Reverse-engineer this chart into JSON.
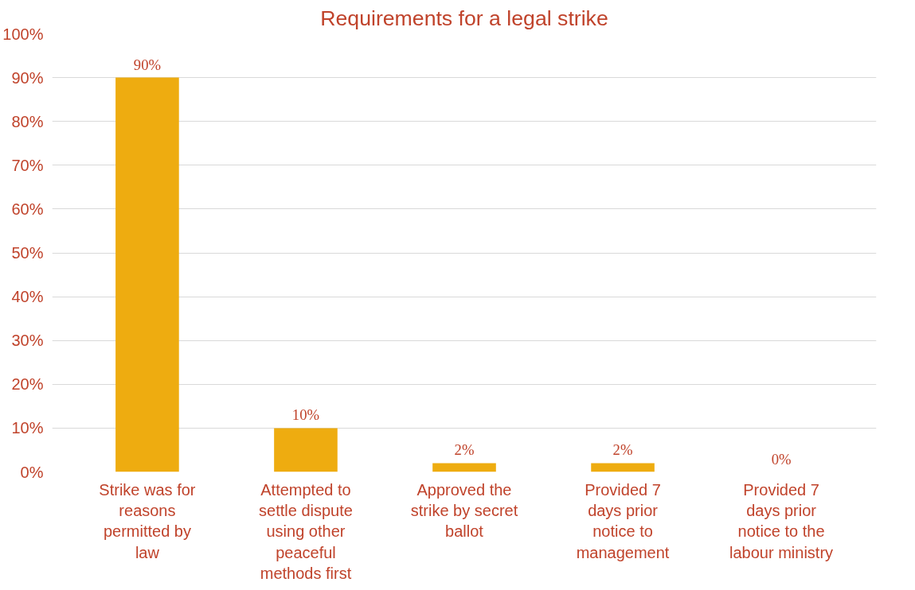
{
  "chart_data": {
    "type": "bar",
    "title": "Requirements for a legal strike",
    "categories": [
      "Strike was for\nreasons\npermitted by\nlaw",
      "Attempted to\nsettle dispute\nusing other\npeaceful\nmethods first",
      "Approved the\nstrike by secret\nballot",
      "Provided 7\ndays prior\nnotice to\nmanagement",
      "Provided 7\ndays prior\nnotice to the\nlabour ministry"
    ],
    "values": [
      90,
      10,
      2,
      2,
      0
    ],
    "value_labels": [
      "90%",
      "10%",
      "2%",
      "2%",
      "0%"
    ],
    "color": "#eeac10",
    "ylim": [
      0,
      100
    ],
    "yticks": [
      {
        "value": 0,
        "label": "0%"
      },
      {
        "value": 10,
        "label": "10%"
      },
      {
        "value": 20,
        "label": "20%"
      },
      {
        "value": 30,
        "label": "30%"
      },
      {
        "value": 40,
        "label": "40%"
      },
      {
        "value": 50,
        "label": "50%"
      },
      {
        "value": 60,
        "label": "60%"
      },
      {
        "value": 70,
        "label": "70%"
      },
      {
        "value": 80,
        "label": "80%"
      },
      {
        "value": 90,
        "label": "90%"
      },
      {
        "value": 100,
        "label": "100%"
      }
    ],
    "grid": "y"
  }
}
